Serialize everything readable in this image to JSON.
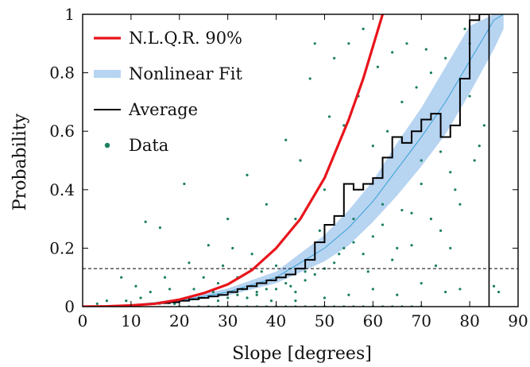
{
  "chart_data": {
    "type": "scatter",
    "title": "",
    "xlabel": "Slope [degrees]",
    "ylabel": "Probability",
    "xlim": [
      0,
      90
    ],
    "ylim": [
      0,
      1
    ],
    "x_ticks": [
      "0",
      "10",
      "20",
      "30",
      "40",
      "50",
      "60",
      "70",
      "80",
      "90"
    ],
    "y_ticks": [
      "0",
      "0.2",
      "0.4",
      "0.6",
      "0.8",
      "1"
    ],
    "grid": false,
    "legend_position": "top-left",
    "legend": [
      {
        "label": "N.L.Q.R. 90%",
        "style": "line",
        "color": "#e8141b"
      },
      {
        "label": "Nonlinear Fit",
        "style": "band",
        "color": "#b7d4f1"
      },
      {
        "label": "Average",
        "style": "line",
        "color": "#000000"
      },
      {
        "label": "Data",
        "style": "dot",
        "color": "#1a7f5f"
      }
    ],
    "reference_lines": {
      "horizontal_y": 0.13,
      "vertical_x": 84
    },
    "series": [
      {
        "name": "N.L.Q.R. 90%",
        "kind": "curve",
        "color": "#e8141b",
        "x": [
          0,
          5,
          10,
          15,
          20,
          25,
          30,
          35,
          40,
          45,
          50,
          55,
          58,
          60,
          62
        ],
        "y": [
          0.0,
          0.001,
          0.004,
          0.01,
          0.024,
          0.046,
          0.076,
          0.125,
          0.2,
          0.3,
          0.44,
          0.64,
          0.78,
          0.89,
          1.0
        ]
      },
      {
        "name": "Nonlinear Fit",
        "kind": "band",
        "color": "#b7d4f1",
        "line_color": "#3aa0d8",
        "x": [
          0,
          10,
          20,
          30,
          40,
          50,
          55,
          60,
          65,
          70,
          75,
          80,
          85,
          87
        ],
        "y": [
          0.0,
          0.005,
          0.02,
          0.05,
          0.1,
          0.2,
          0.27,
          0.36,
          0.47,
          0.58,
          0.7,
          0.84,
          0.98,
          1.0
        ],
        "y_lower": [
          0.0,
          0.003,
          0.014,
          0.038,
          0.08,
          0.155,
          0.21,
          0.29,
          0.38,
          0.48,
          0.59,
          0.73,
          0.88,
          0.95
        ],
        "y_upper": [
          0.0,
          0.007,
          0.026,
          0.062,
          0.12,
          0.245,
          0.33,
          0.43,
          0.56,
          0.68,
          0.82,
          0.96,
          1.0,
          1.0
        ]
      },
      {
        "name": "Average",
        "kind": "step",
        "color": "#000000",
        "x": [
          10,
          12,
          14,
          16,
          18,
          20,
          22,
          24,
          26,
          28,
          30,
          32,
          34,
          36,
          38,
          40,
          42,
          44,
          46,
          48,
          50,
          52,
          54,
          56,
          58,
          60,
          62,
          64,
          66,
          68,
          70,
          72,
          74,
          76,
          78,
          80,
          82
        ],
        "y": [
          0.005,
          0.008,
          0.01,
          0.012,
          0.015,
          0.02,
          0.025,
          0.03,
          0.035,
          0.04,
          0.05,
          0.06,
          0.07,
          0.08,
          0.09,
          0.1,
          0.11,
          0.13,
          0.16,
          0.22,
          0.28,
          0.31,
          0.42,
          0.4,
          0.42,
          0.44,
          0.51,
          0.58,
          0.56,
          0.6,
          0.64,
          0.66,
          0.58,
          0.62,
          0.78,
          0.98,
          1.0
        ]
      },
      {
        "name": "Data",
        "kind": "scatter",
        "color": "#1a7f5f",
        "points": [
          [
            3,
            0.01
          ],
          [
            5,
            0.02
          ],
          [
            8,
            0.1
          ],
          [
            9,
            0.02
          ],
          [
            11,
            0.07
          ],
          [
            12,
            0.03
          ],
          [
            13,
            0.29
          ],
          [
            14,
            0.05
          ],
          [
            16,
            0.27
          ],
          [
            17,
            0.1
          ],
          [
            18,
            0.06
          ],
          [
            19,
            0.01
          ],
          [
            20,
            0.02
          ],
          [
            21,
            0.42
          ],
          [
            22,
            0.15
          ],
          [
            23,
            0.06
          ],
          [
            24,
            0.03
          ],
          [
            25,
            0.1
          ],
          [
            26,
            0.21
          ],
          [
            27,
            0.05
          ],
          [
            28,
            0.08
          ],
          [
            29,
            0.14
          ],
          [
            30,
            0.3
          ],
          [
            31,
            0.2
          ],
          [
            32,
            0.1
          ],
          [
            33,
            0.06
          ],
          [
            34,
            0.45
          ],
          [
            35,
            0.18
          ],
          [
            36,
            0.04
          ],
          [
            37,
            0.12
          ],
          [
            38,
            0.35
          ],
          [
            39,
            0.02
          ],
          [
            40,
            0.14
          ],
          [
            41,
            0.22
          ],
          [
            42,
            0.57
          ],
          [
            43,
            0.07
          ],
          [
            44,
            0.3
          ],
          [
            45,
            0.5
          ],
          [
            46,
            0.12
          ],
          [
            47,
            0.78
          ],
          [
            48,
            0.9
          ],
          [
            49,
            0.26
          ],
          [
            50,
            0.4
          ],
          [
            51,
            0.65
          ],
          [
            52,
            0.85
          ],
          [
            53,
            0.18
          ],
          [
            54,
            0.62
          ],
          [
            55,
            0.9
          ],
          [
            56,
            0.3
          ],
          [
            57,
            0.72
          ],
          [
            58,
            0.95
          ],
          [
            59,
            0.12
          ],
          [
            60,
            0.55
          ],
          [
            61,
            0.82
          ],
          [
            62,
            0.35
          ],
          [
            63,
            0.6
          ],
          [
            64,
            0.87
          ],
          [
            65,
            0.2
          ],
          [
            66,
            0.7
          ],
          [
            67,
            0.9
          ],
          [
            68,
            0.32
          ],
          [
            69,
            0.75
          ],
          [
            70,
            0.5
          ],
          [
            71,
            0.88
          ],
          [
            72,
            0.8
          ],
          [
            73,
            0.14
          ],
          [
            74,
            0.53
          ],
          [
            75,
            0.85
          ],
          [
            76,
            0.2
          ],
          [
            77,
            0.4
          ],
          [
            78,
            0.06
          ],
          [
            79,
            0.95
          ],
          [
            80,
            0.9
          ],
          [
            82,
            0.55
          ],
          [
            83,
            0.62
          ],
          [
            85,
            0.07
          ],
          [
            86,
            0.05
          ],
          [
            40,
            0.06
          ],
          [
            42,
            0.08
          ],
          [
            44,
            0.05
          ],
          [
            46,
            0.09
          ],
          [
            48,
            0.11
          ],
          [
            50,
            0.13
          ],
          [
            52,
            0.15
          ],
          [
            54,
            0.2
          ],
          [
            56,
            0.22
          ],
          [
            58,
            0.18
          ],
          [
            60,
            0.24
          ],
          [
            62,
            0.28
          ],
          [
            64,
            0.16
          ],
          [
            66,
            0.33
          ],
          [
            68,
            0.21
          ],
          [
            70,
            0.42
          ],
          [
            72,
            0.3
          ],
          [
            74,
            0.26
          ],
          [
            76,
            0.46
          ],
          [
            78,
            0.35
          ],
          [
            80,
            0.72
          ],
          [
            81,
            0.5
          ],
          [
            28,
            0.02
          ],
          [
            30,
            0.03
          ],
          [
            32,
            0.04
          ],
          [
            34,
            0.03
          ],
          [
            36,
            0.05
          ],
          [
            38,
            0.06
          ],
          [
            44,
            0.02
          ],
          [
            50,
            0.03
          ],
          [
            55,
            0.04
          ],
          [
            60,
            0.06
          ],
          [
            65,
            0.04
          ],
          [
            70,
            0.08
          ],
          [
            75,
            0.05
          ],
          [
            20,
            0.0
          ],
          [
            22,
            0.0
          ],
          [
            24,
            0.0
          ],
          [
            26,
            0.0
          ],
          [
            28,
            0.0
          ],
          [
            30,
            0.0
          ],
          [
            32,
            0.0
          ],
          [
            34,
            0.0
          ],
          [
            36,
            0.0
          ],
          [
            38,
            0.0
          ],
          [
            40,
            0.0
          ],
          [
            42,
            0.0
          ],
          [
            44,
            0.0
          ],
          [
            46,
            0.0
          ],
          [
            48,
            0.0
          ],
          [
            50,
            0.0
          ],
          [
            52,
            0.0
          ],
          [
            54,
            0.0
          ],
          [
            56,
            0.0
          ],
          [
            58,
            0.0
          ],
          [
            60,
            0.0
          ],
          [
            62,
            0.0
          ],
          [
            64,
            0.0
          ],
          [
            66,
            0.0
          ],
          [
            68,
            0.0
          ],
          [
            70,
            0.0
          ]
        ]
      }
    ]
  }
}
